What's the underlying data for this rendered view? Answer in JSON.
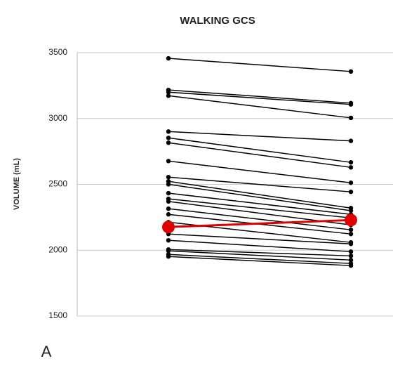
{
  "chart_data": {
    "type": "line",
    "title": "WALKING GCS",
    "y_label": "VOLUME (mL)",
    "annotation": "A",
    "categories": [
      null,
      null
    ],
    "ylim": [
      1500,
      3500
    ],
    "yticks": [
      1500,
      2000,
      2500,
      3000,
      3500
    ],
    "grid": true,
    "series": [
      {
        "color": "#000000",
        "values": [
          3457,
          3357
        ]
      },
      {
        "color": "#000000",
        "values": [
          3217,
          3117
        ]
      },
      {
        "color": "#000000",
        "values": [
          3200,
          3107
        ]
      },
      {
        "color": "#000000",
        "values": [
          3173,
          3005
        ]
      },
      {
        "color": "#000000",
        "values": [
          2901,
          2830
        ]
      },
      {
        "color": "#000000",
        "values": [
          2853,
          2667
        ]
      },
      {
        "color": "#000000",
        "values": [
          2816,
          2629
        ]
      },
      {
        "color": "#000000",
        "values": [
          2677,
          2512
        ]
      },
      {
        "color": "#000000",
        "values": [
          2555,
          2443
        ]
      },
      {
        "color": "#000000",
        "values": [
          2523,
          2320
        ]
      },
      {
        "color": "#000000",
        "values": [
          2500,
          2300
        ]
      },
      {
        "color": "#000000",
        "values": [
          2433,
          2272
        ]
      },
      {
        "color": "#000000",
        "values": [
          2390,
          2245
        ]
      },
      {
        "color": "#000000",
        "values": [
          2370,
          2192
        ]
      },
      {
        "color": "#000000",
        "values": [
          2315,
          2155
        ]
      },
      {
        "color": "#000000",
        "values": [
          2272,
          2123
        ]
      },
      {
        "color": "#000000",
        "values": [
          2213,
          2059
        ]
      },
      {
        "color": "#000000",
        "values": [
          2123,
          2048
        ]
      },
      {
        "color": "#000000",
        "values": [
          2075,
          1989
        ]
      },
      {
        "color": "#000000",
        "values": [
          2005,
          1957
        ]
      },
      {
        "color": "#000000",
        "values": [
          1995,
          1925
        ]
      },
      {
        "color": "#000000",
        "values": [
          1968,
          1899
        ]
      },
      {
        "color": "#000000",
        "values": [
          1952,
          1883
        ]
      },
      {
        "color": "#e00000",
        "values": [
          2176,
          2229
        ]
      }
    ]
  }
}
